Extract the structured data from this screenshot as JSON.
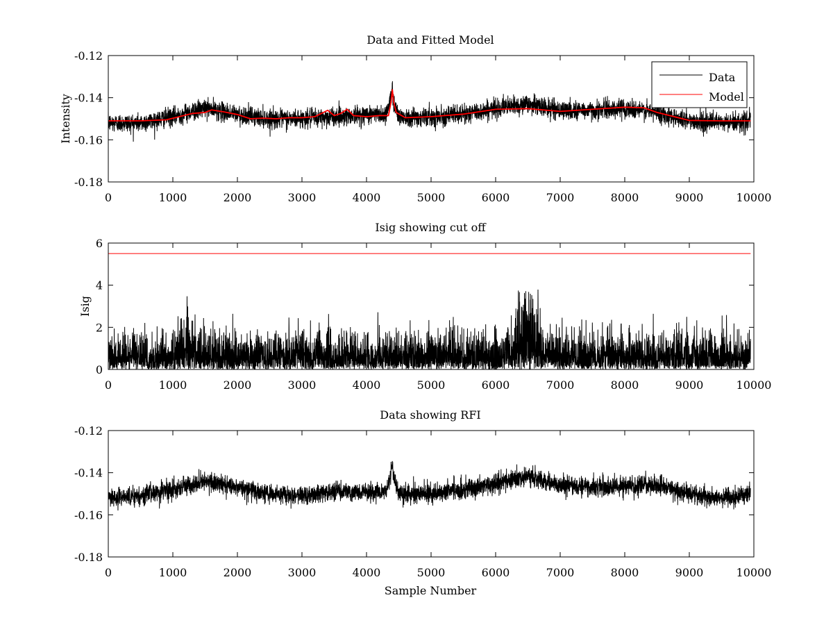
{
  "figure": {
    "background": "#ffffff"
  },
  "chart_data": [
    {
      "type": "line",
      "title": "Data and Fitted Model",
      "xlabel": "",
      "ylabel": "Intensity",
      "xlim": [
        0,
        10000
      ],
      "ylim": [
        -0.18,
        -0.12
      ],
      "xticks": [
        0,
        1000,
        2000,
        3000,
        4000,
        5000,
        6000,
        7000,
        8000,
        9000,
        10000
      ],
      "yticks": [
        -0.18,
        -0.16,
        -0.14,
        -0.12
      ],
      "xtick_labels": [
        "0",
        "1000",
        "2000",
        "3000",
        "4000",
        "5000",
        "6000",
        "7000",
        "8000",
        "9000",
        "10000"
      ],
      "ytick_labels": [
        "-0.18",
        "-0.16",
        "-0.14",
        "-0.12"
      ],
      "grid": false,
      "legend": {
        "position": "top-right",
        "entries": [
          "Data",
          "Model"
        ]
      },
      "series": [
        {
          "name": "Data",
          "color": "#000000",
          "kind": "noisy",
          "n_samples": 9950,
          "noise_amplitude": 0.004,
          "baseline_x": [
            0,
            500,
            1000,
            1500,
            2000,
            2500,
            3000,
            3500,
            4000,
            4300,
            4380,
            4400,
            4420,
            4500,
            5000,
            5500,
            6000,
            6500,
            7000,
            7500,
            8000,
            8500,
            9000,
            9500,
            9950
          ],
          "baseline_y": [
            -0.152,
            -0.152,
            -0.149,
            -0.145,
            -0.148,
            -0.15,
            -0.15,
            -0.149,
            -0.148,
            -0.148,
            -0.14,
            -0.135,
            -0.142,
            -0.149,
            -0.149,
            -0.148,
            -0.145,
            -0.143,
            -0.146,
            -0.146,
            -0.145,
            -0.147,
            -0.151,
            -0.152,
            -0.151
          ]
        },
        {
          "name": "Model",
          "color": "#ff0000",
          "kind": "smooth",
          "x": [
            0,
            500,
            900,
            1100,
            1300,
            1500,
            1600,
            1800,
            2000,
            2200,
            2400,
            2600,
            2800,
            3000,
            3200,
            3300,
            3400,
            3500,
            3600,
            3700,
            3800,
            4000,
            4200,
            4340,
            4380,
            4400,
            4420,
            4460,
            4600,
            5000,
            5500,
            6000,
            6500,
            7000,
            7500,
            8000,
            8300,
            8500,
            9000,
            9500,
            9950
          ],
          "y": [
            -0.151,
            -0.151,
            -0.1505,
            -0.149,
            -0.1475,
            -0.147,
            -0.1458,
            -0.1468,
            -0.148,
            -0.15,
            -0.1497,
            -0.15,
            -0.1495,
            -0.1495,
            -0.149,
            -0.1475,
            -0.146,
            -0.1485,
            -0.1475,
            -0.1455,
            -0.1485,
            -0.149,
            -0.1485,
            -0.1485,
            -0.142,
            -0.136,
            -0.142,
            -0.147,
            -0.1495,
            -0.149,
            -0.1478,
            -0.1455,
            -0.1452,
            -0.1465,
            -0.1455,
            -0.1445,
            -0.1448,
            -0.147,
            -0.1508,
            -0.151,
            -0.151
          ]
        }
      ]
    },
    {
      "type": "line",
      "title": "Isig showing cut off",
      "xlabel": "",
      "ylabel": "Isig",
      "xlim": [
        0,
        10000
      ],
      "ylim": [
        0,
        6
      ],
      "xticks": [
        0,
        1000,
        2000,
        3000,
        4000,
        5000,
        6000,
        7000,
        8000,
        9000,
        10000
      ],
      "yticks": [
        0,
        2,
        4,
        6
      ],
      "xtick_labels": [
        "0",
        "1000",
        "2000",
        "3000",
        "4000",
        "5000",
        "6000",
        "7000",
        "8000",
        "9000",
        "10000"
      ],
      "ytick_labels": [
        "0",
        "2",
        "4",
        "6"
      ],
      "grid": false,
      "series": [
        {
          "color": "#000000",
          "kind": "abs-noise",
          "n_samples": 9950,
          "scale": 0.8,
          "max": 3.8,
          "bump_center": 6500,
          "bump_width": 200,
          "bump_height": 1.2,
          "bump2_center": 1200,
          "bump2_width": 120,
          "bump2_height": 0.5
        },
        {
          "color": "#ff0000",
          "kind": "constant",
          "x": [
            0,
            9950
          ],
          "y": [
            5.5,
            5.5
          ]
        }
      ]
    },
    {
      "type": "line",
      "title": "Data showing RFI",
      "xlabel": "Sample Number",
      "ylabel": "",
      "xlim": [
        0,
        10000
      ],
      "ylim": [
        -0.18,
        -0.12
      ],
      "xticks": [
        0,
        1000,
        2000,
        3000,
        4000,
        5000,
        6000,
        7000,
        8000,
        9000,
        10000
      ],
      "yticks": [
        -0.18,
        -0.16,
        -0.14,
        -0.12
      ],
      "xtick_labels": [
        "0",
        "1000",
        "2000",
        "3000",
        "4000",
        "5000",
        "6000",
        "7000",
        "8000",
        "9000",
        "10000"
      ],
      "ytick_labels": [
        "-0.18",
        "-0.16",
        "-0.14",
        "-0.12"
      ],
      "grid": false,
      "series": [
        {
          "color": "#000000",
          "kind": "noisy",
          "n_samples": 9950,
          "noise_amplitude": 0.004,
          "baseline_x": [
            0,
            500,
            1000,
            1500,
            2000,
            2500,
            3000,
            3500,
            4000,
            4300,
            4380,
            4400,
            4420,
            4500,
            5000,
            5500,
            6000,
            6500,
            7000,
            7500,
            8000,
            8500,
            9000,
            9500,
            9950
          ],
          "baseline_y": [
            -0.152,
            -0.151,
            -0.148,
            -0.144,
            -0.147,
            -0.15,
            -0.151,
            -0.149,
            -0.149,
            -0.149,
            -0.141,
            -0.135,
            -0.142,
            -0.15,
            -0.15,
            -0.148,
            -0.145,
            -0.142,
            -0.146,
            -0.147,
            -0.146,
            -0.146,
            -0.15,
            -0.152,
            -0.15
          ]
        }
      ]
    }
  ]
}
